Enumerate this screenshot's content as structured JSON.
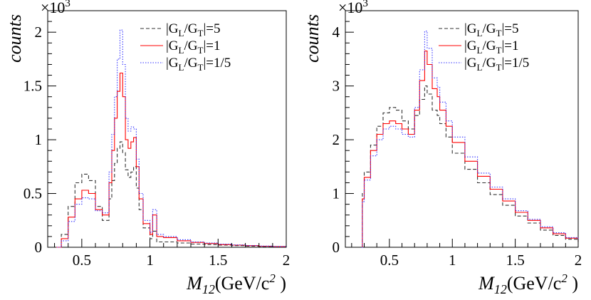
{
  "chart_data": [
    {
      "type": "line",
      "id": "left",
      "title": "",
      "exponent_label": "×10",
      "exponent_sup": "3",
      "ylabel": "counts",
      "xlabel_var": "M",
      "xlabel_sub": "12",
      "xlabel_unit": "(GeV/c",
      "xlabel_unit_sup": "2",
      "xlabel_close": " )",
      "xlim": [
        0.25,
        2.0
      ],
      "ylim": [
        0,
        2.2
      ],
      "xticks": [
        0.5,
        1,
        1.5,
        2
      ],
      "xtick_labels": [
        "0.5",
        "1",
        "1.5",
        "2"
      ],
      "yticks": [
        0,
        0.5,
        1,
        1.5,
        2
      ],
      "ytick_labels": [
        "0",
        "0.5",
        "1",
        "1.5",
        "2"
      ],
      "legend": [
        {
          "pre": "|G",
          "s1": "L",
          "mid": "/G",
          "s2": "T",
          "post": "|=5"
        },
        {
          "pre": "|G",
          "s1": "L",
          "mid": "/G",
          "s2": "T",
          "post": "|=1"
        },
        {
          "pre": "|G",
          "s1": "L",
          "mid": "/G",
          "s2": "T",
          "post": "|=1/5"
        }
      ],
      "series": [
        {
          "name": "|GL/GT|=5",
          "color": "#333333",
          "dash": "5,3",
          "x": [
            0.3,
            0.35,
            0.4,
            0.45,
            0.5,
            0.55,
            0.6,
            0.65,
            0.7,
            0.72,
            0.74,
            0.76,
            0.78,
            0.8,
            0.82,
            0.84,
            0.86,
            0.88,
            0.9,
            0.92,
            0.95,
            1.0,
            1.02,
            1.05,
            1.1,
            1.2,
            1.3,
            1.4,
            1.5,
            1.6,
            1.7,
            1.8,
            1.9,
            2.0
          ],
          "y": [
            0.0,
            0.12,
            0.38,
            0.6,
            0.68,
            0.62,
            0.38,
            0.25,
            0.45,
            0.62,
            0.78,
            0.92,
            0.98,
            0.88,
            0.72,
            0.65,
            0.7,
            0.75,
            0.55,
            0.35,
            0.18,
            0.08,
            0.15,
            0.05,
            0.05,
            0.04,
            0.03,
            0.025,
            0.02,
            0.015,
            0.01,
            0.008,
            0.005,
            0.003
          ]
        },
        {
          "name": "|GL/GT|=1",
          "color": "#ff0000",
          "dash": "",
          "x": [
            0.3,
            0.35,
            0.4,
            0.45,
            0.5,
            0.55,
            0.6,
            0.65,
            0.7,
            0.72,
            0.74,
            0.76,
            0.78,
            0.8,
            0.82,
            0.84,
            0.86,
            0.88,
            0.9,
            0.92,
            0.95,
            1.0,
            1.02,
            1.05,
            1.1,
            1.2,
            1.3,
            1.4,
            1.5,
            1.6,
            1.7,
            1.8,
            1.9,
            2.0
          ],
          "y": [
            0.0,
            0.08,
            0.28,
            0.45,
            0.53,
            0.5,
            0.35,
            0.3,
            0.6,
            0.9,
            1.2,
            1.45,
            1.62,
            1.4,
            1.0,
            0.92,
            0.98,
            1.02,
            0.75,
            0.45,
            0.22,
            0.12,
            0.3,
            0.1,
            0.09,
            0.06,
            0.045,
            0.035,
            0.025,
            0.02,
            0.015,
            0.01,
            0.006,
            0.004
          ]
        },
        {
          "name": "|GL/GT|=1/5",
          "color": "#3333ff",
          "dash": "1.5,2",
          "x": [
            0.3,
            0.35,
            0.4,
            0.45,
            0.5,
            0.55,
            0.6,
            0.65,
            0.7,
            0.72,
            0.74,
            0.76,
            0.78,
            0.8,
            0.82,
            0.84,
            0.86,
            0.88,
            0.9,
            0.92,
            0.95,
            1.0,
            1.02,
            1.05,
            1.1,
            1.2,
            1.3,
            1.4,
            1.5,
            1.6,
            1.7,
            1.8,
            1.9,
            2.0
          ],
          "y": [
            0.0,
            0.06,
            0.24,
            0.4,
            0.46,
            0.45,
            0.34,
            0.32,
            0.7,
            1.05,
            1.4,
            1.75,
            2.02,
            1.7,
            1.2,
            1.08,
            1.12,
            1.1,
            0.82,
            0.5,
            0.25,
            0.14,
            0.35,
            0.12,
            0.1,
            0.07,
            0.05,
            0.04,
            0.03,
            0.022,
            0.016,
            0.011,
            0.007,
            0.004
          ]
        }
      ]
    },
    {
      "type": "line",
      "id": "right",
      "title": "",
      "exponent_label": "×10",
      "exponent_sup": "3",
      "ylabel": "counts",
      "xlabel_var": "M",
      "xlabel_sub": "12",
      "xlabel_unit": "(GeV/c",
      "xlabel_unit_sup": "2",
      "xlabel_close": " )",
      "xlim": [
        0.15,
        2.0
      ],
      "ylim": [
        0,
        4.4
      ],
      "xticks": [
        0.5,
        1,
        1.5,
        2
      ],
      "xtick_labels": [
        "0.5",
        "1",
        "1.5",
        "2"
      ],
      "yticks": [
        0,
        1,
        2,
        3,
        4
      ],
      "ytick_labels": [
        "0",
        "1",
        "2",
        "3",
        "4"
      ],
      "legend": [
        {
          "pre": "|G",
          "s1": "L",
          "mid": "/G",
          "s2": "T",
          "post": "|=5"
        },
        {
          "pre": "|G",
          "s1": "L",
          "mid": "/G",
          "s2": "T",
          "post": "|=1"
        },
        {
          "pre": "|G",
          "s1": "L",
          "mid": "/G",
          "s2": "T",
          "post": "|=1/5"
        }
      ],
      "series": [
        {
          "name": "|GL/GT|=5",
          "color": "#333333",
          "dash": "5,3",
          "x": [
            0.28,
            0.285,
            0.3,
            0.35,
            0.4,
            0.45,
            0.5,
            0.55,
            0.6,
            0.65,
            0.7,
            0.74,
            0.78,
            0.8,
            0.84,
            0.88,
            0.9,
            0.95,
            1.0,
            1.1,
            1.2,
            1.3,
            1.4,
            1.5,
            1.6,
            1.7,
            1.8,
            1.9,
            2.0
          ],
          "y": [
            0.0,
            1.0,
            1.4,
            1.9,
            2.25,
            2.5,
            2.6,
            2.55,
            2.35,
            2.2,
            2.45,
            2.75,
            3.0,
            2.85,
            2.55,
            2.45,
            2.3,
            2.05,
            1.75,
            1.45,
            1.2,
            0.98,
            0.78,
            0.58,
            0.45,
            0.32,
            0.22,
            0.15,
            0.1
          ]
        },
        {
          "name": "|GL/GT|=1",
          "color": "#ff0000",
          "dash": "",
          "x": [
            0.28,
            0.285,
            0.3,
            0.35,
            0.4,
            0.45,
            0.5,
            0.55,
            0.6,
            0.65,
            0.7,
            0.74,
            0.78,
            0.8,
            0.84,
            0.88,
            0.9,
            0.95,
            1.0,
            1.1,
            1.2,
            1.3,
            1.4,
            1.5,
            1.6,
            1.7,
            1.8,
            1.9,
            2.0
          ],
          "y": [
            0.0,
            0.9,
            1.3,
            1.8,
            2.1,
            2.3,
            2.35,
            2.3,
            2.2,
            2.1,
            2.55,
            3.1,
            3.65,
            3.4,
            2.95,
            2.8,
            2.55,
            2.25,
            1.95,
            1.6,
            1.32,
            1.08,
            0.86,
            0.65,
            0.5,
            0.36,
            0.25,
            0.17,
            0.11
          ]
        },
        {
          "name": "|GL/GT|=1/5",
          "color": "#3333ff",
          "dash": "1.5,2",
          "x": [
            0.28,
            0.285,
            0.3,
            0.35,
            0.4,
            0.45,
            0.5,
            0.55,
            0.6,
            0.65,
            0.7,
            0.74,
            0.78,
            0.8,
            0.84,
            0.88,
            0.9,
            0.95,
            1.0,
            1.1,
            1.2,
            1.3,
            1.4,
            1.5,
            1.6,
            1.7,
            1.8,
            1.9,
            2.0
          ],
          "y": [
            0.0,
            0.85,
            1.25,
            1.7,
            2.0,
            2.2,
            2.25,
            2.2,
            2.1,
            2.05,
            2.6,
            3.3,
            4.02,
            3.7,
            3.15,
            2.98,
            2.7,
            2.35,
            2.05,
            1.68,
            1.38,
            1.12,
            0.9,
            0.68,
            0.52,
            0.38,
            0.27,
            0.18,
            0.12
          ]
        }
      ]
    }
  ]
}
